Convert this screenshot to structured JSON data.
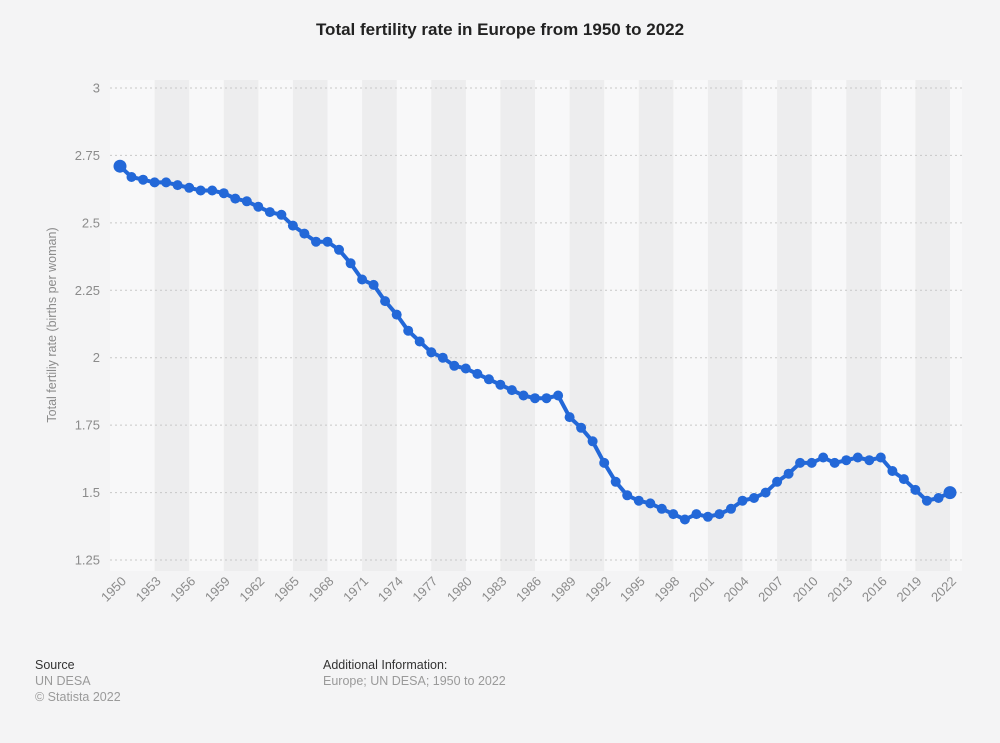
{
  "title": "Total fertility rate in Europe from 1950 to 2022",
  "chart_data": {
    "type": "line",
    "title": "Total fertility rate in Europe from 1950 to 2022",
    "xlabel": "",
    "ylabel": "Total fertiliy rate (births per woman)",
    "ylim": [
      1.25,
      3
    ],
    "y_ticks": [
      3,
      2.75,
      2.5,
      2.25,
      2,
      1.75,
      1.5,
      1.25
    ],
    "x_tick_labels": [
      "1950",
      "1953",
      "1956",
      "1959",
      "1962",
      "1965",
      "1968",
      "1971",
      "1974",
      "1977",
      "1980",
      "1983",
      "1986",
      "1989",
      "1992",
      "1995",
      "1998",
      "2001",
      "2004",
      "2007",
      "2010",
      "2013",
      "2016",
      "2019",
      "2022"
    ],
    "grid": "horizontal-dotted",
    "legend": "none",
    "line_color": "#2368d8",
    "x": [
      1950,
      1951,
      1952,
      1953,
      1954,
      1955,
      1956,
      1957,
      1958,
      1959,
      1960,
      1961,
      1962,
      1963,
      1964,
      1965,
      1966,
      1967,
      1968,
      1969,
      1970,
      1971,
      1972,
      1973,
      1974,
      1975,
      1976,
      1977,
      1978,
      1979,
      1980,
      1981,
      1982,
      1983,
      1984,
      1985,
      1986,
      1987,
      1988,
      1989,
      1990,
      1991,
      1992,
      1993,
      1994,
      1995,
      1996,
      1997,
      1998,
      1999,
      2000,
      2001,
      2002,
      2003,
      2004,
      2005,
      2006,
      2007,
      2008,
      2009,
      2010,
      2011,
      2012,
      2013,
      2014,
      2015,
      2016,
      2017,
      2018,
      2019,
      2020,
      2021,
      2022
    ],
    "values": [
      2.71,
      2.67,
      2.66,
      2.65,
      2.65,
      2.64,
      2.63,
      2.62,
      2.62,
      2.61,
      2.59,
      2.58,
      2.56,
      2.54,
      2.53,
      2.49,
      2.46,
      2.43,
      2.43,
      2.4,
      2.35,
      2.29,
      2.27,
      2.21,
      2.16,
      2.1,
      2.06,
      2.02,
      2.0,
      1.97,
      1.96,
      1.94,
      1.92,
      1.9,
      1.88,
      1.86,
      1.85,
      1.85,
      1.86,
      1.78,
      1.74,
      1.69,
      1.61,
      1.54,
      1.49,
      1.47,
      1.46,
      1.44,
      1.42,
      1.4,
      1.42,
      1.41,
      1.42,
      1.44,
      1.47,
      1.48,
      1.5,
      1.54,
      1.57,
      1.61,
      1.61,
      1.63,
      1.61,
      1.62,
      1.63,
      1.62,
      1.63,
      1.58,
      1.55,
      1.51,
      1.47,
      1.48,
      1.5
    ]
  },
  "footer": {
    "source_label": "Source",
    "source_value": "UN DESA",
    "copyright": "© Statista 2022",
    "additional_info_label": "Additional Information:",
    "additional_info_value": "Europe; UN DESA; 1950 to 2022"
  }
}
